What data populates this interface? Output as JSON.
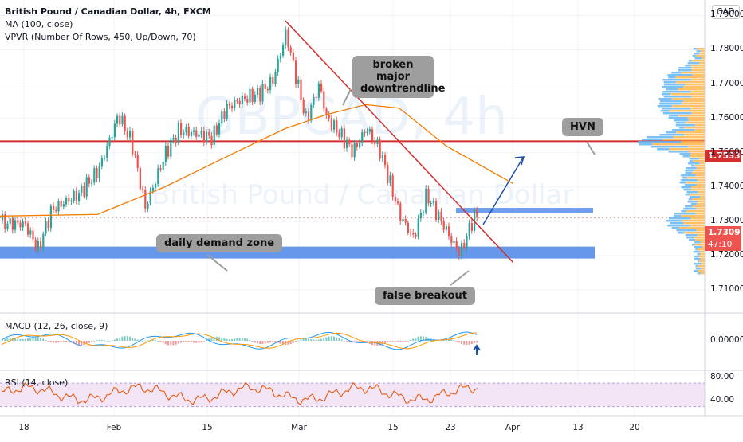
{
  "header": {
    "title": "British Pound / Canadian Dollar, 4h, FXCM",
    "indicator_ma": "MA (100, close)",
    "indicator_vpvr": "VPVR (Number Of Rows, 450, Up/Down, 70)",
    "indicator_macd": "MACD (12, 26, close, 9)",
    "indicator_rsi": "RSI (14, close)",
    "currency": "CAD"
  },
  "watermark": {
    "symbol": "GBPCAD, 4h",
    "name": "British Pound / Canadian Dollar"
  },
  "annotations": {
    "downtrend": "broken major downtrendline",
    "hvn": "HVN",
    "demand": "daily demand zone",
    "false_breakout": "false breakout"
  },
  "price_tags": {
    "resistance": "1.75333",
    "last_price": "1.73098",
    "countdown": "47:10"
  },
  "colors": {
    "up": "#26a69a",
    "down": "#ef5350",
    "ma": "#f57c00",
    "trendline": "#d32f2f",
    "zone": "#4a86e8",
    "rsi_line": "#e65100",
    "rsi_band": "#f3e5f5",
    "arrow": "#1e4fa8",
    "macd_line": "#2196f3",
    "signal_line": "#ff9800"
  },
  "chart_data": {
    "type": "candlestick",
    "y_axis": {
      "ticks": [
        "1.79000",
        "1.78000",
        "1.77000",
        "1.76000",
        "1.75000",
        "1.74000",
        "1.73000",
        "1.72000",
        "1.71000"
      ],
      "range": [
        1.7035,
        1.7945
      ]
    },
    "x_axis": {
      "ticks": [
        "18",
        "Feb",
        "15",
        "Mar",
        "15",
        "23",
        "Apr",
        "13",
        "20"
      ]
    },
    "price_path": {
      "x": [
        "Jan 14",
        "Jan 18",
        "Jan 20",
        "Jan 22",
        "Jan 26",
        "Jan 29",
        "Feb 1",
        "Feb 3",
        "Feb 5",
        "Feb 8",
        "Feb 10",
        "Feb 15",
        "Feb 17",
        "Feb 19",
        "Feb 22",
        "Feb 24",
        "Feb 26",
        "Mar 1",
        "Mar 3",
        "Mar 4",
        "Mar 8",
        "Mar 10",
        "Mar 12",
        "Mar 15",
        "Mar 17",
        "Mar 19",
        "Mar 22",
        "Mar 23",
        "Mar 24",
        "Mar 26"
      ],
      "close": [
        1.7305,
        1.729,
        1.721,
        1.732,
        1.737,
        1.745,
        1.762,
        1.754,
        1.735,
        1.75,
        1.756,
        1.753,
        1.762,
        1.765,
        1.768,
        1.772,
        1.786,
        1.76,
        1.77,
        1.76,
        1.749,
        1.756,
        1.75,
        1.732,
        1.726,
        1.739,
        1.728,
        1.724,
        1.721,
        1.731
      ]
    },
    "ma100": {
      "x": [
        "Jan 14",
        "Jan 29",
        "Feb 8",
        "Feb 19",
        "Feb 26",
        "Mar 4",
        "Mar 10",
        "Mar 15",
        "Mar 22",
        "Apr 1"
      ],
      "y": [
        1.7315,
        1.732,
        1.74,
        1.7505,
        1.757,
        1.761,
        1.764,
        1.763,
        1.752,
        1.741
      ]
    },
    "levels": {
      "hvn_resistance": 1.75333,
      "last_price": 1.73098,
      "demand_zone": [
        1.7195,
        1.721
      ],
      "breakout_zone": [
        1.7325,
        1.7332
      ]
    },
    "trendline": {
      "from": [
        "Feb 26",
        1.7885
      ],
      "to": [
        "Apr 1",
        1.718
      ]
    },
    "macd": {
      "ticks": [
        "0.00000"
      ]
    },
    "rsi": {
      "ticks": [
        "80.00",
        "40.00"
      ],
      "band": [
        30,
        70
      ]
    }
  }
}
